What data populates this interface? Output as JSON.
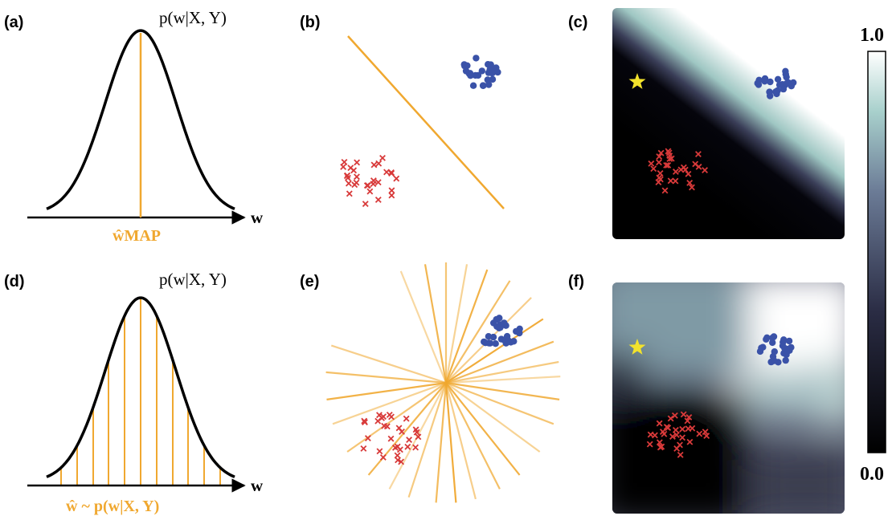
{
  "figure": {
    "panels": {
      "a": {
        "label": "(a)",
        "posterior": "p(w|X, Y)",
        "axis": "w",
        "estimate": "ŵMAP"
      },
      "b": {
        "label": "(b)"
      },
      "c": {
        "label": "(c)"
      },
      "d": {
        "label": "(d)",
        "posterior": "p(w|X, Y)",
        "axis": "w",
        "estimate": "ŵ ~ p(w|X, Y)"
      },
      "e": {
        "label": "(e)"
      },
      "f": {
        "label": "(f)"
      }
    },
    "colorbar": {
      "max_label": "1.0",
      "min_label": "0.0"
    },
    "colors": {
      "orange": "#f0a830",
      "blue_class": "#3a52a8",
      "red_class": "#d83a3a",
      "star": "#f2e22c",
      "curve": "#000000"
    },
    "icons": {
      "class_a": "blue-dot-icon",
      "class_b": "red-cross-icon",
      "test_point": "star-icon"
    }
  }
}
